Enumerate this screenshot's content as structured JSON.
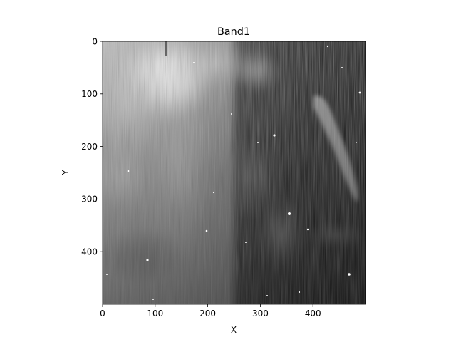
{
  "chart_data": {
    "type": "heatmap",
    "title": "Band1",
    "xlabel": "X",
    "ylabel": "Y",
    "xlim": [
      0,
      500
    ],
    "ylim": [
      500,
      0
    ],
    "colormap": "gray",
    "x_ticks": [
      {
        "value": 0,
        "label": "0"
      },
      {
        "value": 100,
        "label": "100"
      },
      {
        "value": 200,
        "label": "200"
      },
      {
        "value": 300,
        "label": "300"
      },
      {
        "value": 400,
        "label": "400"
      }
    ],
    "y_ticks": [
      {
        "value": 0,
        "label": "0"
      },
      {
        "value": 100,
        "label": "100"
      },
      {
        "value": 200,
        "label": "200"
      },
      {
        "value": 300,
        "label": "300"
      },
      {
        "value": 400,
        "label": "400"
      }
    ]
  }
}
